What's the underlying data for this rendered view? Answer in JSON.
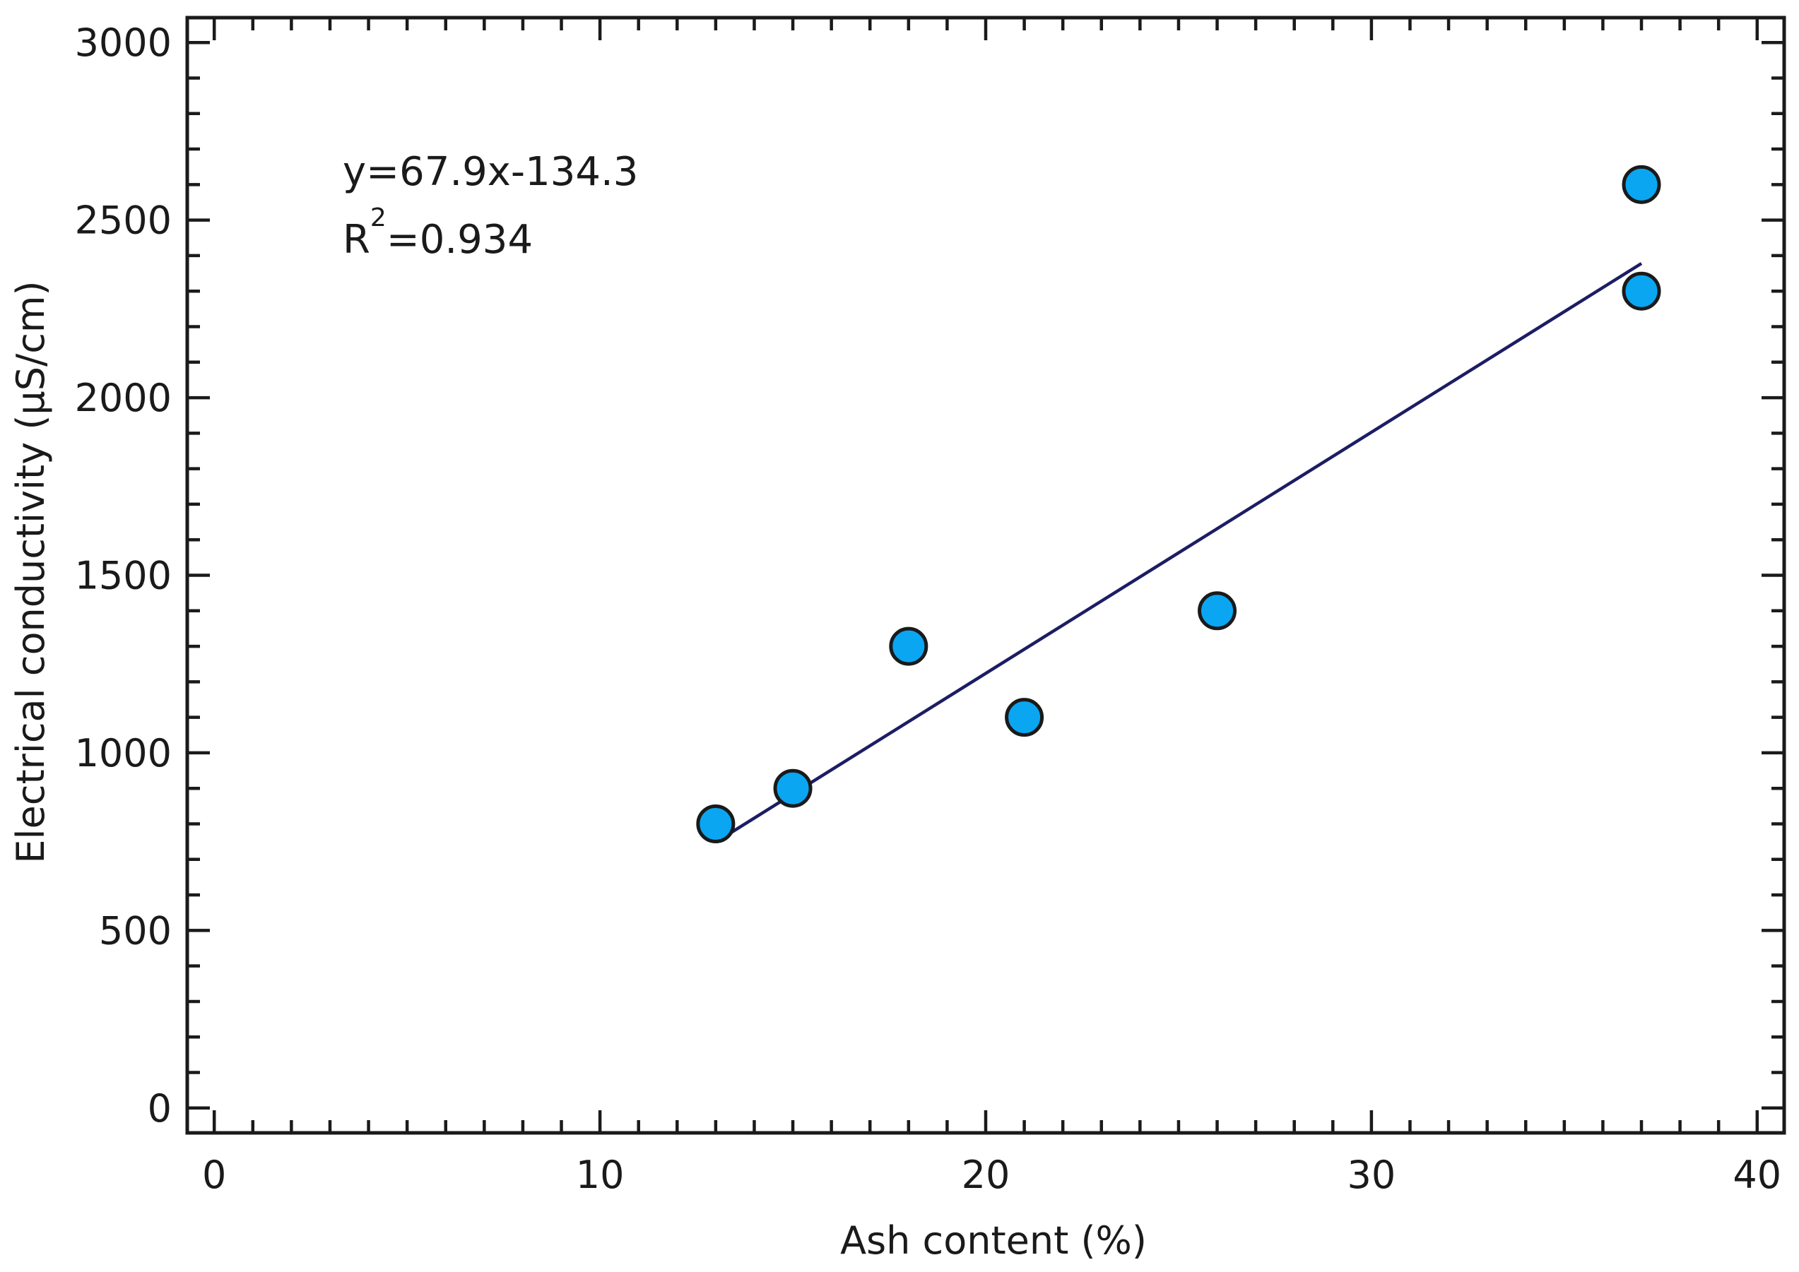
{
  "chart_data": {
    "type": "scatter",
    "xlabel": "Ash content (%)",
    "ylabel": "Electrical conductivity (µS/cm)",
    "xlim": [
      -0.7,
      40.7
    ],
    "ylim": [
      -70,
      3070
    ],
    "x_ticks": [
      0,
      10,
      20,
      30,
      40
    ],
    "x_tick_labels": [
      "0",
      "10",
      "20",
      "30",
      "40"
    ],
    "x_minor_step": 1,
    "y_ticks": [
      0,
      500,
      1000,
      1500,
      2000,
      2500,
      3000
    ],
    "y_tick_labels": [
      "0",
      "500",
      "1000",
      "1500",
      "2000",
      "2500",
      "3000"
    ],
    "y_minor_step": 100,
    "grid": false,
    "legend": "none",
    "series": [
      {
        "x": [
          13,
          15,
          18,
          21,
          26,
          37,
          37
        ],
        "y": [
          800,
          900,
          1300,
          1100,
          1400,
          2300,
          2600
        ],
        "marker_color": "#0aa6f2",
        "marker_edge": "#1a1a1a"
      }
    ],
    "fit_line": {
      "slope": 67.9,
      "intercept": -134.3,
      "x_range": [
        13.4,
        37
      ],
      "color": "#1c1d63"
    },
    "annotations": {
      "equation": "y=67.9x-134.3",
      "r_label": "R",
      "r_sup": "2",
      "r_value": "=0.934"
    }
  }
}
